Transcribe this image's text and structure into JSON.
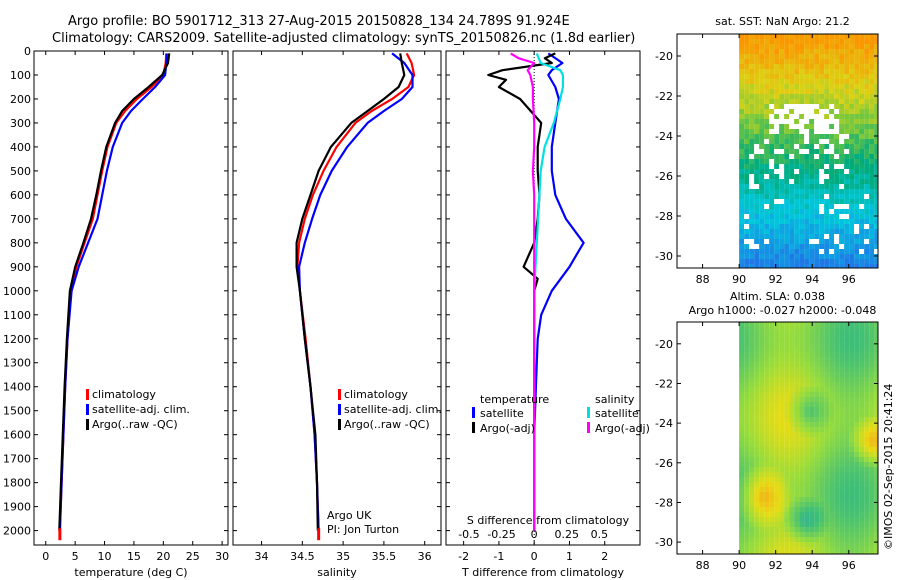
{
  "header": {
    "line1": "Argo profile: BO 5901712_313 27-Aug-2015 20150828_134 24.789S 91.924E",
    "line2": "Climatology: CARS2009. Satellite-adjusted climatology: synTS_20150826.nc (1.8d earlier)"
  },
  "side_stamp": "©IMOS 02-Sep-2015 20:41:24",
  "colors": {
    "clim": "#ff0000",
    "sat": "#0000ff",
    "argo": "#000000",
    "sat_s": "#00e0e0",
    "argo_s": "#ff00ff"
  },
  "chart_data": [
    {
      "type": "line",
      "xlabel": "temperature (deg C)",
      "xticks": [
        "0",
        "5",
        "10",
        "15",
        "20",
        "25",
        "30"
      ],
      "xlim": [
        -2,
        31
      ],
      "yticks": [
        "0",
        "100",
        "200",
        "300",
        "400",
        "500",
        "600",
        "700",
        "800",
        "900",
        "1000",
        "1100",
        "1200",
        "1300",
        "1400",
        "1500",
        "1600",
        "1700",
        "1800",
        "1900",
        "2000"
      ],
      "ylim": [
        0,
        2060
      ],
      "legend": [
        "climatology",
        "satellite-adj. clim.",
        "Argo(..raw -QC)"
      ],
      "series": [
        {
          "name": "climatology",
          "depth": [
            10,
            50,
            100,
            150,
            200,
            250,
            300,
            400,
            500,
            600,
            700,
            800,
            900,
            1000,
            1200,
            1400,
            1600,
            1800,
            2000
          ],
          "values": [
            20.5,
            20.4,
            20.0,
            18.0,
            15.5,
            13.5,
            12.0,
            10.5,
            9.6,
            8.8,
            8.0,
            6.6,
            5.2,
            4.3,
            3.7,
            3.3,
            3.0,
            2.7,
            2.4
          ]
        },
        {
          "name": "satellite-adj. clim.",
          "depth": [
            10,
            50,
            100,
            150,
            200,
            250,
            300,
            400,
            500,
            600,
            700,
            800,
            900,
            1000,
            1200,
            1400,
            1600,
            1800,
            2000
          ],
          "values": [
            20.6,
            20.5,
            20.3,
            18.6,
            16.5,
            14.5,
            13.0,
            11.4,
            10.4,
            9.6,
            8.8,
            7.2,
            5.6,
            4.4,
            3.7,
            3.3,
            3.0,
            2.7,
            2.4
          ]
        },
        {
          "name": "Argo(..raw -QC)",
          "depth": [
            10,
            50,
            100,
            150,
            200,
            250,
            300,
            400,
            500,
            600,
            700,
            800,
            900,
            1000,
            1200,
            1400,
            1600,
            1800,
            2000
          ],
          "values": [
            21.0,
            20.8,
            19.8,
            17.5,
            15.0,
            13.0,
            11.8,
            10.3,
            9.4,
            8.6,
            7.7,
            6.4,
            5.0,
            4.1,
            3.6,
            3.2,
            2.9,
            2.6,
            2.3
          ]
        }
      ],
      "flat_segment": {
        "name": "climatology",
        "x": 2.4,
        "depth": [
          1990,
          2040
        ]
      }
    },
    {
      "type": "line",
      "xlabel": "salinity",
      "xticks": [
        "34",
        "34.5",
        "35",
        "35.5",
        "36"
      ],
      "xlim": [
        33.65,
        36.2
      ],
      "ylim": [
        0,
        2060
      ],
      "legend": [
        "climatology",
        "satellite-adj. clim.",
        "Argo(..raw -QC)"
      ],
      "annotation": [
        "Argo UK",
        "PI: Jon Turton"
      ],
      "series": [
        {
          "name": "climatology",
          "depth": [
            10,
            50,
            100,
            150,
            200,
            250,
            300,
            400,
            500,
            600,
            700,
            800,
            900,
            1000,
            1200,
            1400,
            1600,
            1800,
            2000
          ],
          "values": [
            35.78,
            35.84,
            35.87,
            35.8,
            35.6,
            35.35,
            35.15,
            34.92,
            34.76,
            34.63,
            34.53,
            34.46,
            34.44,
            34.47,
            34.54,
            34.6,
            34.65,
            34.68,
            34.7
          ]
        },
        {
          "name": "satellite-adj. clim.",
          "depth": [
            10,
            50,
            100,
            150,
            200,
            250,
            300,
            400,
            500,
            600,
            700,
            800,
            900,
            1000,
            1200,
            1400,
            1600,
            1800,
            2000
          ],
          "values": [
            35.6,
            35.75,
            35.85,
            35.85,
            35.72,
            35.5,
            35.3,
            35.05,
            34.86,
            34.72,
            34.62,
            34.53,
            34.46,
            34.47,
            34.53,
            34.6,
            34.65,
            34.68,
            34.7
          ]
        },
        {
          "name": "Argo(..raw -QC)",
          "depth": [
            10,
            50,
            100,
            150,
            200,
            250,
            300,
            400,
            500,
            600,
            700,
            800,
            900,
            1000,
            1200,
            1400,
            1600,
            1800,
            2000
          ],
          "values": [
            35.7,
            35.72,
            35.75,
            35.68,
            35.5,
            35.3,
            35.1,
            34.85,
            34.7,
            34.6,
            34.5,
            34.43,
            34.43,
            34.47,
            34.53,
            34.6,
            34.66,
            34.68,
            34.69
          ]
        }
      ],
      "flat_segment": {
        "name": "climatology",
        "x": 34.7,
        "depth": [
          1990,
          2040
        ]
      }
    },
    {
      "type": "line",
      "xlabel": "T difference from climatology",
      "xticks": [
        "-2",
        "-1",
        "0",
        "1",
        "2"
      ],
      "xlim": [
        -2.5,
        3.0
      ],
      "top_xlabel": "S difference from climatology",
      "top_xticks": [
        "-0.5",
        "-0.25",
        "0",
        "0.25",
        "0.5"
      ],
      "ylim": [
        0,
        2060
      ],
      "legend_groups": [
        {
          "title": "temperature",
          "items": [
            "satellite",
            "Argo(-adj)"
          ]
        },
        {
          "title": "salinity",
          "items": [
            "satellite",
            "Argo(-adj)"
          ]
        }
      ],
      "series": [
        {
          "name": "satellite",
          "group": "temperature",
          "depth": [
            10,
            50,
            80,
            100,
            150,
            200,
            300,
            400,
            500,
            600,
            700,
            800,
            850,
            900,
            1000,
            1100,
            1200,
            1400,
            1600,
            1800,
            2000
          ],
          "values": [
            0.4,
            0.8,
            0.5,
            0.4,
            0.6,
            0.7,
            0.6,
            0.5,
            0.5,
            0.6,
            0.9,
            1.4,
            1.2,
            1.0,
            0.5,
            0.2,
            0.1,
            0.05,
            0.0,
            0.0,
            0.0
          ]
        },
        {
          "name": "Argo(-adj)",
          "group": "temperature",
          "depth": [
            10,
            30,
            50,
            80,
            100,
            120,
            150,
            200,
            300,
            400,
            500,
            600,
            700,
            800,
            900,
            950,
            1000,
            1200,
            1400,
            1600,
            1800,
            2000
          ],
          "values": [
            0.6,
            0.3,
            0.5,
            -0.9,
            -1.3,
            -0.8,
            -1.0,
            -0.4,
            0.2,
            0.1,
            0.1,
            0.15,
            0.1,
            0.0,
            -0.3,
            0.1,
            0.0,
            0.0,
            0.0,
            0.0,
            0.0,
            0.0
          ]
        },
        {
          "name": "satellite",
          "group": "salinity",
          "depth": [
            10,
            50,
            80,
            100,
            150,
            200,
            300,
            400,
            500,
            700,
            900,
            1000,
            1200,
            1400,
            1600,
            1800,
            2000
          ],
          "values": [
            0.02,
            0.05,
            0.2,
            0.22,
            0.22,
            0.2,
            0.15,
            0.08,
            0.05,
            0.03,
            0.01,
            0.0,
            0.0,
            0.0,
            0.0,
            0.0,
            0.0
          ]
        },
        {
          "name": "Argo(-adj)",
          "group": "salinity",
          "depth": [
            10,
            30,
            50,
            80,
            100,
            150,
            200,
            300,
            400,
            500,
            600,
            800,
            1000,
            1200,
            1400,
            1600,
            1800,
            2000
          ],
          "values": [
            -0.18,
            -0.12,
            0.0,
            -0.05,
            -0.03,
            -0.01,
            -0.01,
            0.0,
            0.0,
            -0.01,
            0.0,
            0.0,
            0.0,
            0.0,
            0.0,
            0.0,
            0.0,
            0.0
          ]
        }
      ]
    },
    {
      "type": "heatmap",
      "title": "sat. SST: NaN Argo: 21.2",
      "xticks": [
        "88",
        "90",
        "92",
        "94",
        "96"
      ],
      "yticks": [
        "-20",
        "-22",
        "-24",
        "-26",
        "-28",
        "-30"
      ],
      "xlim": [
        86.6,
        97.6
      ],
      "ylim": [
        -30.6,
        -18.9
      ]
    },
    {
      "type": "heatmap",
      "title_lines": [
        "Altim. SLA: 0.038",
        "Argo h1000: -0.027 h2000: -0.048"
      ],
      "xticks": [
        "88",
        "90",
        "92",
        "94",
        "96"
      ],
      "yticks": [
        "-20",
        "-22",
        "-24",
        "-26",
        "-28",
        "-30"
      ],
      "xlim": [
        86.6,
        97.6
      ],
      "ylim": [
        -30.6,
        -18.9
      ]
    }
  ]
}
